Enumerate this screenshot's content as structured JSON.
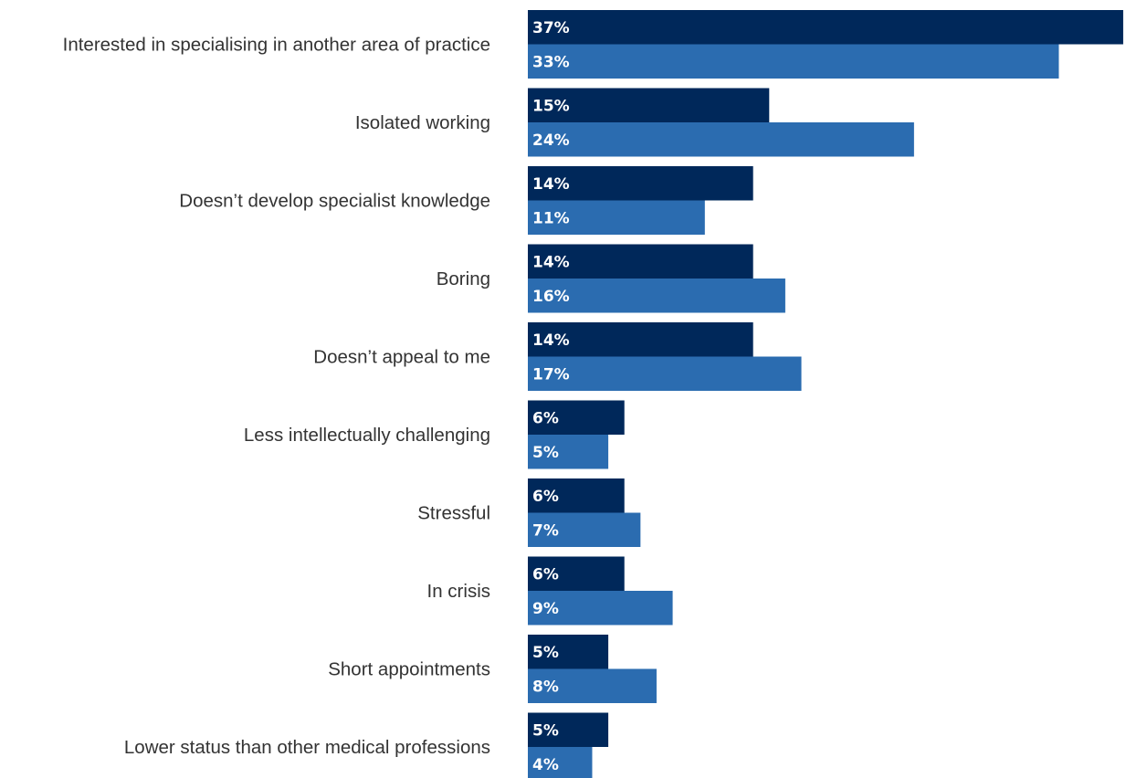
{
  "chart_data": {
    "type": "bar",
    "orientation": "horizontal",
    "categories": [
      "Interested in specialising in another area of practice",
      "Isolated working",
      "Doesn’t develop specialist knowledge",
      "Boring",
      "Doesn’t appeal to me",
      "Less intellectually challenging",
      "Stressful",
      "In crisis",
      "Short appointments",
      "Lower status than other medical professions"
    ],
    "series": [
      {
        "color": "#00285a",
        "values": [
          37,
          15,
          14,
          14,
          14,
          6,
          6,
          6,
          5,
          5
        ],
        "labels": [
          "37%",
          "15%",
          "14%",
          "14%",
          "14%",
          "6%",
          "6%",
          "6%",
          "5%",
          "5%"
        ]
      },
      {
        "color": "#2b6cb0",
        "values": [
          33,
          24,
          11,
          16,
          17,
          5,
          7,
          9,
          8,
          4
        ],
        "labels": [
          "33%",
          "24%",
          "11%",
          "16%",
          "17%",
          "5%",
          "7%",
          "9%",
          "8%",
          "4%"
        ]
      }
    ],
    "xlim": [
      0,
      37
    ],
    "grid": false,
    "legend": "none"
  }
}
